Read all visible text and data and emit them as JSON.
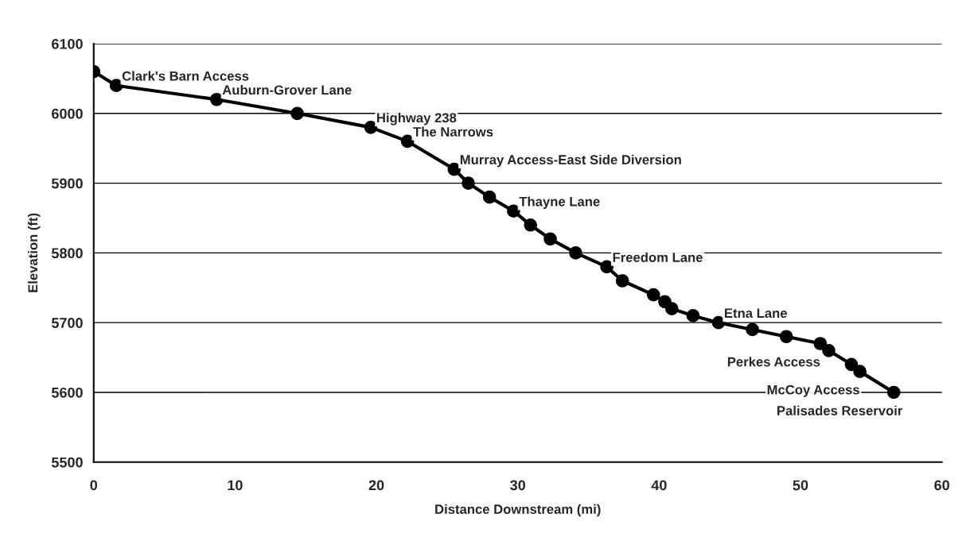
{
  "chart_data": {
    "type": "line",
    "xlabel": "Distance Downstream (mi)",
    "ylabel": "Elevation (ft)",
    "x": [
      0,
      1.6,
      8.7,
      14.4,
      19.6,
      22.2,
      25.5,
      26.5,
      28.0,
      29.7,
      30.9,
      32.3,
      34.1,
      36.3,
      37.4,
      39.6,
      40.4,
      40.9,
      42.4,
      44.2,
      46.6,
      49.0,
      51.4,
      52.0,
      53.6,
      54.2,
      56.6
    ],
    "series": [
      {
        "color": "#000000",
        "values": [
          6060,
          6040,
          6020,
          6000,
          5980,
          5960,
          5920,
          5900,
          5880,
          5860,
          5840,
          5820,
          5800,
          5780,
          5760,
          5740,
          5730,
          5720,
          5710,
          5700,
          5690,
          5680,
          5670,
          5660,
          5640,
          5630,
          5600
        ]
      }
    ],
    "xlim": [
      0,
      60
    ],
    "xticks": [
      0,
      10,
      20,
      30,
      40,
      50,
      60
    ],
    "ylim": [
      5500,
      6100
    ],
    "yticks": [
      5500,
      5600,
      5700,
      5800,
      5900,
      6000,
      6100
    ],
    "grid": "y",
    "marker": "circle",
    "line_style": "solid",
    "legend": false,
    "annotations": [
      {
        "text": "Clark's Barn Access",
        "x": 1.6,
        "y": 6040
      },
      {
        "text": "Auburn-Grover Lane",
        "x": 8.7,
        "y": 6020
      },
      {
        "text": "Highway 238",
        "x": 19.6,
        "y": 5980
      },
      {
        "text": "The Narrows",
        "x": 22.2,
        "y": 5960
      },
      {
        "text": "Murray Access-East Side Diversion",
        "x": 25.5,
        "y": 5920
      },
      {
        "text": "Thayne Lane",
        "x": 29.7,
        "y": 5860
      },
      {
        "text": "Freedom Lane",
        "x": 36.3,
        "y": 5780
      },
      {
        "text": "Etna Lane",
        "x": 44.2,
        "y": 5700
      },
      {
        "text": "Perkes Access",
        "x": 51.4,
        "y": 5670
      },
      {
        "text": "McCoy Access",
        "x": 54.2,
        "y": 5630
      },
      {
        "text": "Palisades Reservoir",
        "x": 56.6,
        "y": 5600
      }
    ]
  }
}
